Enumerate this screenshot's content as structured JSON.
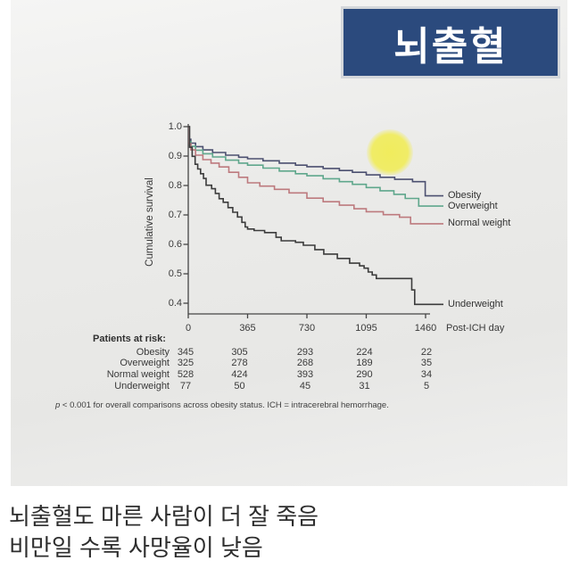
{
  "title_box": {
    "label": "뇌출혈",
    "bg_color": "#2b4a7d"
  },
  "caption": {
    "line1": "뇌출혈도 마른 사람이 더 잘 죽음",
    "line2": "비만일 수록 사망율이 낮음"
  },
  "chart_data": {
    "type": "line",
    "subtype": "kaplan-meier-step",
    "title": "",
    "ylabel": "Cumulative survival",
    "xlabel": "Post-ICH day",
    "yticks": [
      1.0,
      0.9,
      0.8,
      0.7,
      0.6,
      0.5,
      0.4
    ],
    "xticks": [
      0,
      365,
      730,
      1095,
      1460
    ],
    "ylim": [
      0.36,
      1.0
    ],
    "xlim": [
      0,
      1460
    ],
    "grid": false,
    "legend_position": "right-of-line-ends",
    "highlight": {
      "shape": "yellow-circle",
      "color": "#f1ec55"
    },
    "series": [
      {
        "name": "Obesity",
        "color": "#4c5070",
        "points": [
          [
            0,
            1.0
          ],
          [
            6,
            0.957
          ],
          [
            16,
            0.944
          ],
          [
            45,
            0.932
          ],
          [
            90,
            0.921
          ],
          [
            150,
            0.912
          ],
          [
            230,
            0.903
          ],
          [
            310,
            0.896
          ],
          [
            365,
            0.891
          ],
          [
            460,
            0.884
          ],
          [
            560,
            0.876
          ],
          [
            660,
            0.869
          ],
          [
            730,
            0.864
          ],
          [
            830,
            0.858
          ],
          [
            930,
            0.851
          ],
          [
            1010,
            0.845
          ],
          [
            1095,
            0.836
          ],
          [
            1180,
            0.828
          ],
          [
            1270,
            0.821
          ],
          [
            1380,
            0.813
          ],
          [
            1458,
            0.765
          ]
        ]
      },
      {
        "name": "Overweight",
        "color": "#5fa78c",
        "points": [
          [
            0,
            1.0
          ],
          [
            6,
            0.949
          ],
          [
            16,
            0.933
          ],
          [
            45,
            0.92
          ],
          [
            90,
            0.908
          ],
          [
            150,
            0.897
          ],
          [
            230,
            0.886
          ],
          [
            310,
            0.876
          ],
          [
            365,
            0.869
          ],
          [
            460,
            0.859
          ],
          [
            560,
            0.849
          ],
          [
            660,
            0.84
          ],
          [
            730,
            0.833
          ],
          [
            830,
            0.823
          ],
          [
            930,
            0.813
          ],
          [
            1010,
            0.804
          ],
          [
            1095,
            0.793
          ],
          [
            1180,
            0.782
          ],
          [
            1265,
            0.77
          ],
          [
            1335,
            0.756
          ],
          [
            1418,
            0.73
          ]
        ]
      },
      {
        "name": "Normal weight",
        "color": "#bd7a7e",
        "points": [
          [
            0,
            1.0
          ],
          [
            6,
            0.942
          ],
          [
            16,
            0.921
          ],
          [
            45,
            0.903
          ],
          [
            90,
            0.888
          ],
          [
            140,
            0.876
          ],
          [
            190,
            0.863
          ],
          [
            250,
            0.845
          ],
          [
            310,
            0.828
          ],
          [
            365,
            0.809
          ],
          [
            440,
            0.798
          ],
          [
            530,
            0.787
          ],
          [
            620,
            0.775
          ],
          [
            730,
            0.757
          ],
          [
            830,
            0.745
          ],
          [
            930,
            0.733
          ],
          [
            1020,
            0.721
          ],
          [
            1095,
            0.711
          ],
          [
            1200,
            0.701
          ],
          [
            1300,
            0.692
          ],
          [
            1368,
            0.67
          ]
        ]
      },
      {
        "name": "Underweight",
        "color": "#3c3c3c",
        "points": [
          [
            0,
            1.0
          ],
          [
            8,
            0.93
          ],
          [
            24,
            0.899
          ],
          [
            42,
            0.872
          ],
          [
            58,
            0.856
          ],
          [
            76,
            0.84
          ],
          [
            94,
            0.824
          ],
          [
            110,
            0.801
          ],
          [
            144,
            0.789
          ],
          [
            167,
            0.773
          ],
          [
            190,
            0.755
          ],
          [
            215,
            0.743
          ],
          [
            245,
            0.725
          ],
          [
            274,
            0.709
          ],
          [
            303,
            0.693
          ],
          [
            330,
            0.675
          ],
          [
            350,
            0.659
          ],
          [
            365,
            0.652
          ],
          [
            405,
            0.647
          ],
          [
            470,
            0.64
          ],
          [
            540,
            0.624
          ],
          [
            572,
            0.612
          ],
          [
            660,
            0.607
          ],
          [
            708,
            0.597
          ],
          [
            779,
            0.582
          ],
          [
            834,
            0.567
          ],
          [
            917,
            0.552
          ],
          [
            993,
            0.536
          ],
          [
            1054,
            0.527
          ],
          [
            1082,
            0.519
          ],
          [
            1107,
            0.506
          ],
          [
            1132,
            0.496
          ],
          [
            1157,
            0.484
          ],
          [
            1360,
            0.484
          ],
          [
            1375,
            0.445
          ],
          [
            1393,
            0.396
          ]
        ]
      }
    ],
    "risk_table": {
      "title": "Patients at risk:",
      "columns": [
        0,
        365,
        730,
        1095,
        1460
      ],
      "rows": [
        {
          "label": "Obesity",
          "values": [
            345,
            305,
            293,
            224,
            22
          ]
        },
        {
          "label": "Overweight",
          "values": [
            325,
            278,
            268,
            189,
            35
          ]
        },
        {
          "label": "Normal weight",
          "values": [
            528,
            424,
            393,
            290,
            34
          ]
        },
        {
          "label": "Underweight",
          "values": [
            77,
            50,
            45,
            31,
            5
          ]
        }
      ]
    },
    "footnote_prefix": "p",
    "footnote_rest": " < 0.001 for overall comparisons across obesity status. ICH = intracerebral hemorrhage."
  }
}
